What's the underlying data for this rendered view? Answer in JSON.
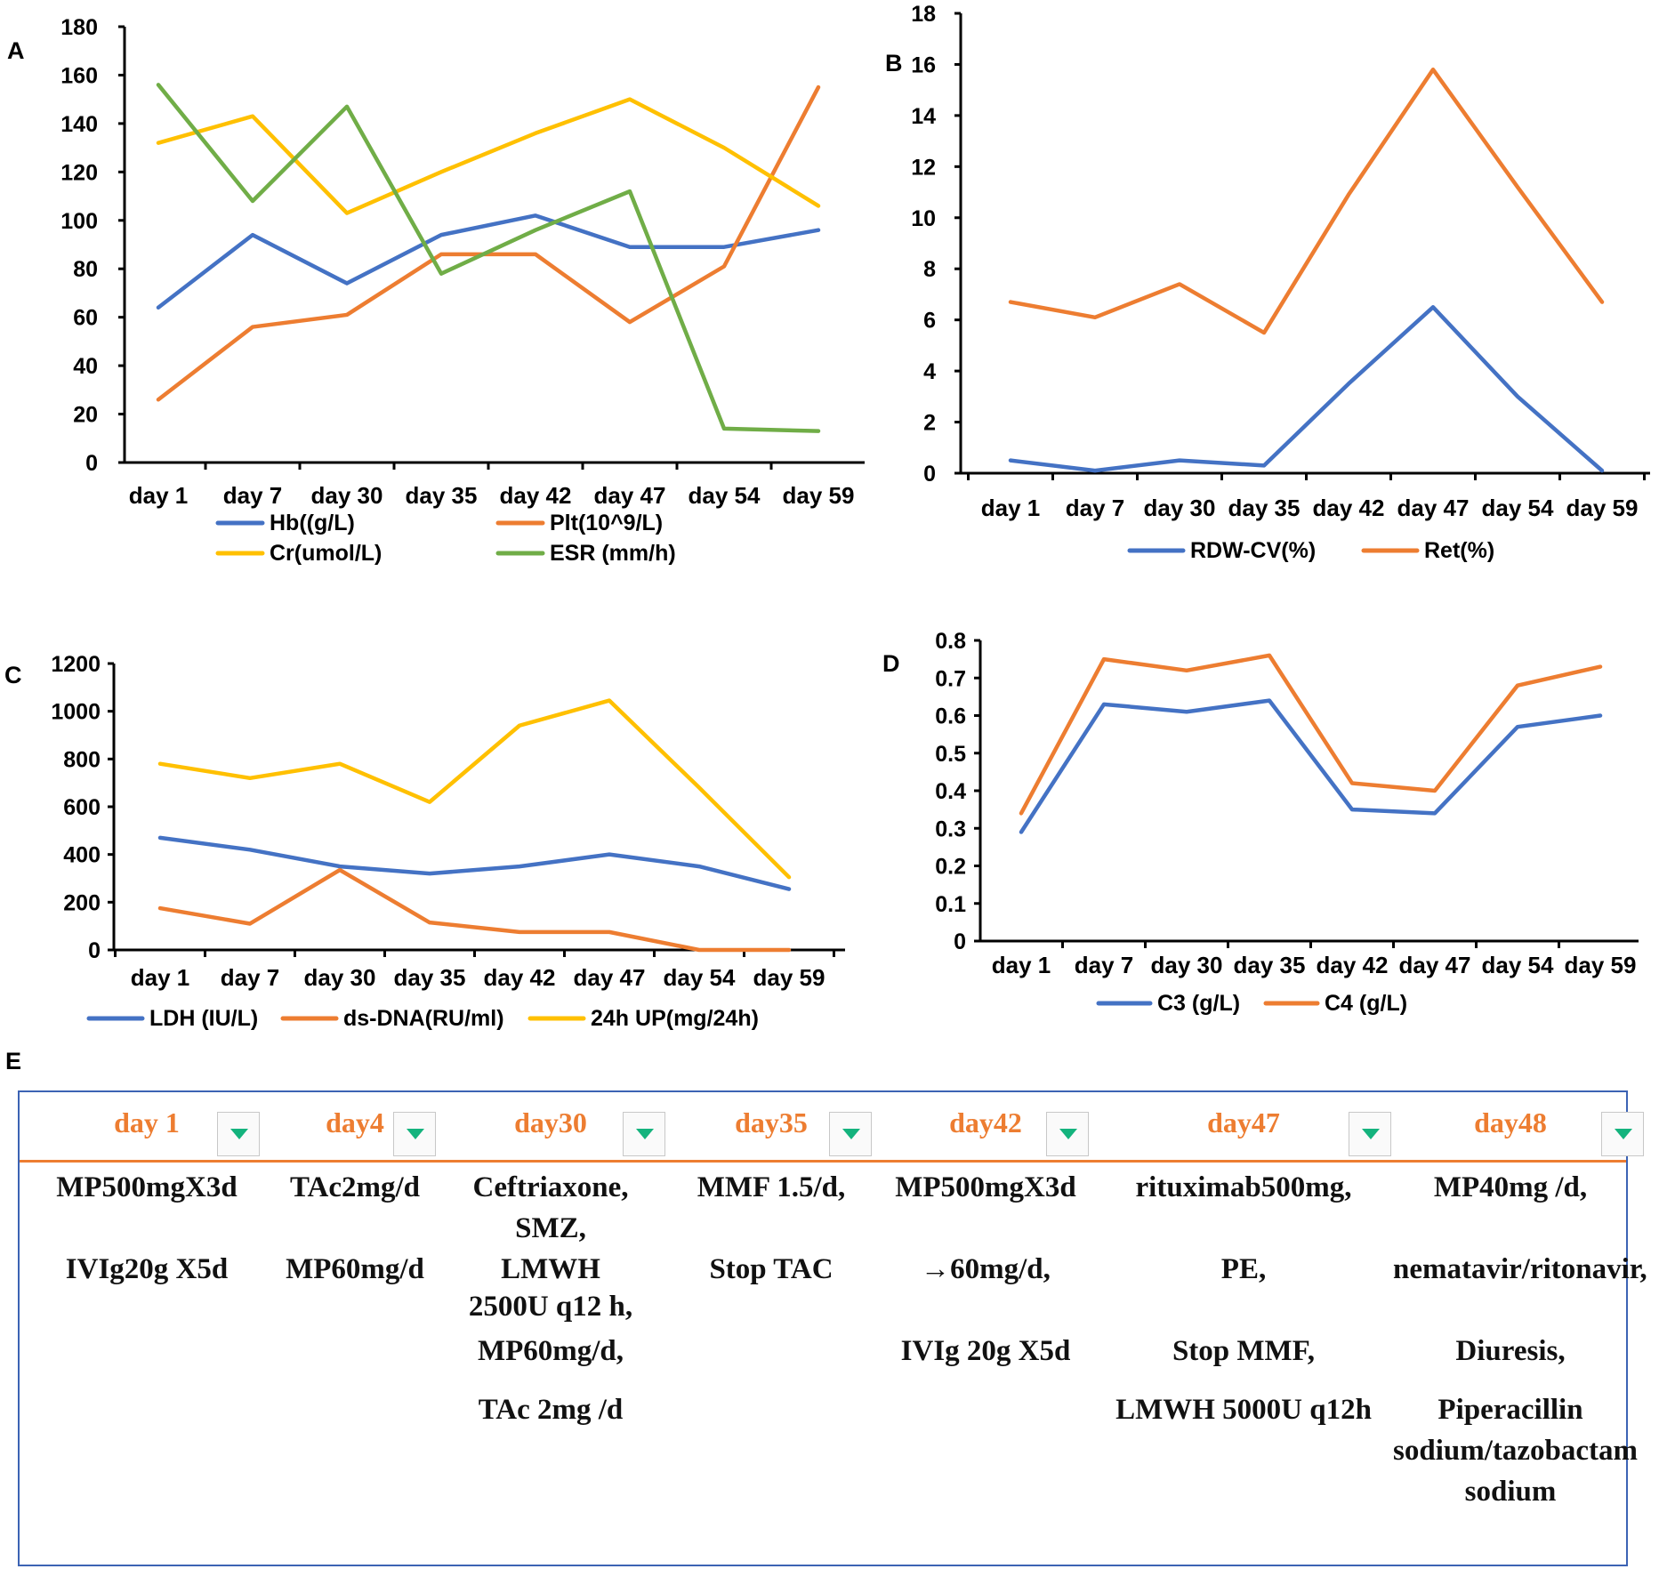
{
  "chart_data": [
    {
      "panel": "A",
      "type": "line",
      "categories": [
        "day 1",
        "day 7",
        "day 30",
        "day 35",
        "day 42",
        "day 47",
        "day 54",
        "day 59"
      ],
      "ylim": [
        0,
        180
      ],
      "yticks": [
        0,
        20,
        40,
        60,
        80,
        100,
        120,
        140,
        160,
        180
      ],
      "legend": "bottom",
      "series": [
        {
          "name": "Hb((g/L)",
          "color": "#4472c4",
          "values": [
            64,
            94,
            74,
            94,
            102,
            89,
            89,
            96
          ]
        },
        {
          "name": "Plt(10^9/L)",
          "color": "#ed7d31",
          "values": [
            26,
            56,
            61,
            86,
            86,
            58,
            81,
            155
          ]
        },
        {
          "name": "Cr(umol/L)",
          "color": "#ffc000",
          "values": [
            132,
            143,
            103,
            120,
            136,
            150,
            130,
            106
          ]
        },
        {
          "name": "ESR (mm/h)",
          "color": "#70ad47",
          "values": [
            156,
            108,
            147,
            78,
            96,
            112,
            14,
            13
          ]
        }
      ]
    },
    {
      "panel": "B",
      "type": "line",
      "categories": [
        "day 1",
        "day 7",
        "day 30",
        "day 35",
        "day 42",
        "day 47",
        "day 54",
        "day 59"
      ],
      "ylim": [
        0,
        18
      ],
      "yticks": [
        0,
        2,
        4,
        6,
        8,
        10,
        12,
        14,
        16,
        18
      ],
      "legend": "bottom",
      "series": [
        {
          "name": "RDW-CV(%)",
          "color": "#4472c4",
          "values": [
            0.5,
            0.1,
            0.5,
            0.3,
            3.5,
            6.5,
            3,
            0.1
          ]
        },
        {
          "name": "Ret(%)",
          "color": "#ed7d31",
          "values": [
            6.7,
            6.1,
            7.4,
            5.5,
            10.9,
            15.8,
            11.2,
            6.7
          ]
        }
      ]
    },
    {
      "panel": "C",
      "type": "line",
      "categories": [
        "day 1",
        "day 7",
        "day 30",
        "day 35",
        "day 42",
        "day 47",
        "day 54",
        "day 59"
      ],
      "ylim": [
        0,
        1200
      ],
      "yticks": [
        0,
        200,
        400,
        600,
        800,
        1000,
        1200
      ],
      "legend": "bottom",
      "series": [
        {
          "name": "LDH (IU/L)",
          "color": "#4472c4",
          "values": [
            470,
            420,
            350,
            320,
            350,
            400,
            350,
            255
          ]
        },
        {
          "name": "ds-DNA(RU/ml)",
          "color": "#ed7d31",
          "values": [
            175,
            110,
            335,
            115,
            75,
            75,
            0,
            0
          ]
        },
        {
          "name": "24h UP(mg/24h)",
          "color": "#ffc000",
          "values": [
            780,
            720,
            780,
            620,
            940,
            1045,
            680,
            305
          ]
        }
      ]
    },
    {
      "panel": "D",
      "type": "line",
      "categories": [
        "day 1",
        "day 7",
        "day 30",
        "day 35",
        "day 42",
        "day 47",
        "day 54",
        "day 59"
      ],
      "ylim": [
        0,
        0.8
      ],
      "yticks": [
        0,
        0.1,
        0.2,
        0.3,
        0.4,
        0.5,
        0.6,
        0.7,
        0.8
      ],
      "legend": "bottom",
      "series": [
        {
          "name": "C3 (g/L)",
          "color": "#4472c4",
          "values": [
            0.29,
            0.63,
            0.61,
            0.64,
            0.35,
            0.34,
            0.57,
            0.6
          ]
        },
        {
          "name": "C4 (g/L)",
          "color": "#ed7d31",
          "values": [
            0.34,
            0.75,
            0.72,
            0.76,
            0.42,
            0.4,
            0.68,
            0.73
          ]
        }
      ]
    }
  ],
  "panel_e": {
    "letter": "E",
    "columns": [
      {
        "day": "day 1",
        "items": [
          "MP500mgX3d",
          "IVIg20g X5d"
        ]
      },
      {
        "day": "day4",
        "items": [
          "TAc2mg/d",
          "MP60mg/d"
        ]
      },
      {
        "day": "day30",
        "items": [
          "Ceftriaxone,",
          "SMZ,",
          "LMWH",
          "2500U q12 h,",
          "MP60mg/d,",
          "TAc 2mg /d"
        ]
      },
      {
        "day": "day35",
        "items": [
          "MMF 1.5/d,",
          "Stop TAC"
        ]
      },
      {
        "day": "day42",
        "items": [
          "MP500mgX3d",
          "→60mg/d,",
          "IVIg 20g X5d"
        ]
      },
      {
        "day": "day47",
        "items": [
          "rituximab500mg,",
          "PE,",
          "Stop MMF,",
          "LMWH 5000U q12h"
        ]
      },
      {
        "day": "day48",
        "items": [
          "MP40mg /d,",
          "nematavir/ritonavir,",
          "Diuresis,",
          "Piperacillin",
          "sodium/tazobactam",
          "sodium"
        ]
      }
    ]
  }
}
